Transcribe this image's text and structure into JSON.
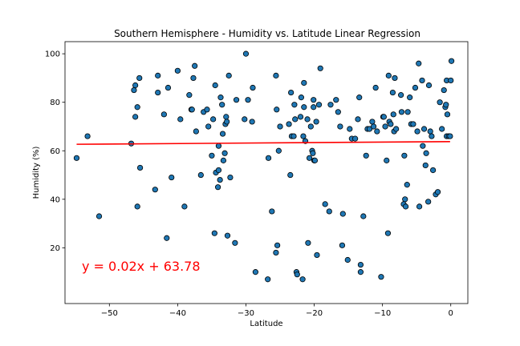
{
  "chart_data": {
    "type": "scatter",
    "title": "Southern Hemisphere - Humidity vs. Latitude Linear Regression",
    "xlabel": "Latitude",
    "ylabel": "Humidity (%)",
    "xlim": [
      -56.5,
      2.5
    ],
    "ylim": [
      -3,
      105
    ],
    "xticks": [
      -50,
      -40,
      -30,
      -20,
      -10,
      0
    ],
    "yticks": [
      20,
      40,
      60,
      80,
      100
    ],
    "grid": false,
    "point_color": "#1f77b4",
    "regression": {
      "equation": "y = 0.02x + 63.78",
      "slope": 0.02,
      "intercept": 63.78,
      "x_range": [
        -54.8,
        -0.1
      ],
      "color": "#ff0000"
    },
    "points": [
      [
        -54.8,
        57
      ],
      [
        -53.2,
        66
      ],
      [
        -51.5,
        33
      ],
      [
        -46.8,
        63
      ],
      [
        -46.4,
        85
      ],
      [
        -46.2,
        87
      ],
      [
        -46.2,
        74
      ],
      [
        -45.9,
        78
      ],
      [
        -45.9,
        37
      ],
      [
        -45.6,
        90
      ],
      [
        -45.5,
        53
      ],
      [
        -43.3,
        44
      ],
      [
        -42.9,
        84
      ],
      [
        -42.9,
        91
      ],
      [
        -42.0,
        75
      ],
      [
        -41.6,
        24
      ],
      [
        -41.4,
        86
      ],
      [
        -40.9,
        49
      ],
      [
        -40.0,
        93
      ],
      [
        -39.6,
        73
      ],
      [
        -39.0,
        37
      ],
      [
        -38.3,
        83
      ],
      [
        -38.0,
        77
      ],
      [
        -37.9,
        77
      ],
      [
        -37.7,
        90
      ],
      [
        -37.5,
        95
      ],
      [
        -37.3,
        68
      ],
      [
        -36.6,
        50
      ],
      [
        -36.2,
        76
      ],
      [
        -35.7,
        77
      ],
      [
        -35.5,
        70
      ],
      [
        -35.0,
        58
      ],
      [
        -34.8,
        73
      ],
      [
        -34.6,
        26
      ],
      [
        -34.5,
        87
      ],
      [
        -34.4,
        51
      ],
      [
        -34.1,
        45
      ],
      [
        -34.0,
        62
      ],
      [
        -34.0,
        52
      ],
      [
        -33.8,
        48
      ],
      [
        -33.7,
        82
      ],
      [
        -33.5,
        79
      ],
      [
        -33.4,
        67
      ],
      [
        -33.3,
        56
      ],
      [
        -33.1,
        59
      ],
      [
        -33.0,
        71
      ],
      [
        -32.9,
        74
      ],
      [
        -32.8,
        72
      ],
      [
        -32.7,
        25
      ],
      [
        -32.5,
        91
      ],
      [
        -32.3,
        49
      ],
      [
        -31.6,
        22
      ],
      [
        -31.4,
        81
      ],
      [
        -30.2,
        73
      ],
      [
        -30.0,
        100
      ],
      [
        -29.7,
        81
      ],
      [
        -29.0,
        86
      ],
      [
        -29.1,
        72
      ],
      [
        -28.6,
        10
      ],
      [
        -26.8,
        7
      ],
      [
        -26.7,
        57
      ],
      [
        -26.2,
        35
      ],
      [
        -25.6,
        91
      ],
      [
        -25.4,
        21
      ],
      [
        -25.6,
        18
      ],
      [
        -25.5,
        77
      ],
      [
        -25.2,
        60
      ],
      [
        -25.0,
        70
      ],
      [
        -23.7,
        71
      ],
      [
        -23.5,
        50
      ],
      [
        -23.4,
        84
      ],
      [
        -23.3,
        66
      ],
      [
        -23.0,
        66
      ],
      [
        -22.9,
        79
      ],
      [
        -22.8,
        73
      ],
      [
        -22.6,
        10
      ],
      [
        -22.5,
        9
      ],
      [
        -22.0,
        74
      ],
      [
        -21.9,
        82
      ],
      [
        -21.7,
        7
      ],
      [
        -21.6,
        66
      ],
      [
        -21.5,
        78
      ],
      [
        -21.5,
        88
      ],
      [
        -21.3,
        64
      ],
      [
        -21.0,
        73
      ],
      [
        -20.9,
        22
      ],
      [
        -20.7,
        57
      ],
      [
        -20.5,
        70
      ],
      [
        -20.3,
        60
      ],
      [
        -20.2,
        59
      ],
      [
        -20.0,
        56
      ],
      [
        -19.9,
        56
      ],
      [
        -19.7,
        72
      ],
      [
        -20.1,
        81
      ],
      [
        -20.1,
        78
      ],
      [
        -19.6,
        17
      ],
      [
        -19.3,
        79
      ],
      [
        -19.1,
        94
      ],
      [
        -18.4,
        38
      ],
      [
        -17.8,
        35
      ],
      [
        -17.6,
        79
      ],
      [
        -16.8,
        81
      ],
      [
        -16.5,
        76
      ],
      [
        -16.2,
        70
      ],
      [
        -15.9,
        21
      ],
      [
        -15.8,
        34
      ],
      [
        -15.1,
        15
      ],
      [
        -14.8,
        69
      ],
      [
        -14.5,
        65
      ],
      [
        -14.0,
        65
      ],
      [
        -13.6,
        73
      ],
      [
        -13.4,
        82
      ],
      [
        -13.2,
        13
      ],
      [
        -13.2,
        10
      ],
      [
        -12.8,
        33
      ],
      [
        -12.4,
        58
      ],
      [
        -12.2,
        69
      ],
      [
        -11.9,
        69
      ],
      [
        -11.5,
        72
      ],
      [
        -11.3,
        70
      ],
      [
        -11.0,
        86
      ],
      [
        -10.8,
        68
      ],
      [
        -10.2,
        8
      ],
      [
        -9.9,
        74
      ],
      [
        -9.8,
        74
      ],
      [
        -9.6,
        70
      ],
      [
        -9.4,
        56
      ],
      [
        -9.2,
        26
      ],
      [
        -9.1,
        91
      ],
      [
        -9.0,
        72
      ],
      [
        -8.8,
        71
      ],
      [
        -8.5,
        84
      ],
      [
        -8.4,
        75
      ],
      [
        -8.3,
        68
      ],
      [
        -8.2,
        90
      ],
      [
        -8.0,
        69
      ],
      [
        -7.3,
        83
      ],
      [
        -7.2,
        76
      ],
      [
        -6.9,
        38
      ],
      [
        -6.8,
        58
      ],
      [
        -6.7,
        40
      ],
      [
        -6.6,
        37
      ],
      [
        -6.4,
        46
      ],
      [
        -6.3,
        76
      ],
      [
        -6.0,
        82
      ],
      [
        -5.8,
        71
      ],
      [
        -5.5,
        71
      ],
      [
        -5.2,
        86
      ],
      [
        -4.9,
        68
      ],
      [
        -4.7,
        96
      ],
      [
        -4.6,
        37
      ],
      [
        -4.2,
        89
      ],
      [
        -4.1,
        62
      ],
      [
        -3.9,
        69
      ],
      [
        -3.7,
        54
      ],
      [
        -3.6,
        59
      ],
      [
        -3.3,
        39
      ],
      [
        -3.2,
        87
      ],
      [
        -3.0,
        68
      ],
      [
        -2.8,
        66
      ],
      [
        -2.6,
        52
      ],
      [
        -2.2,
        42
      ],
      [
        -1.9,
        43
      ],
      [
        -1.6,
        80
      ],
      [
        -1.3,
        69
      ],
      [
        -1.0,
        85
      ],
      [
        -0.8,
        78
      ],
      [
        -0.7,
        79
      ],
      [
        -0.6,
        89
      ],
      [
        -0.6,
        66
      ],
      [
        -0.5,
        75
      ],
      [
        -0.3,
        66
      ],
      [
        -0.1,
        66
      ],
      [
        0.1,
        97
      ],
      [
        0.0,
        89
      ]
    ]
  }
}
